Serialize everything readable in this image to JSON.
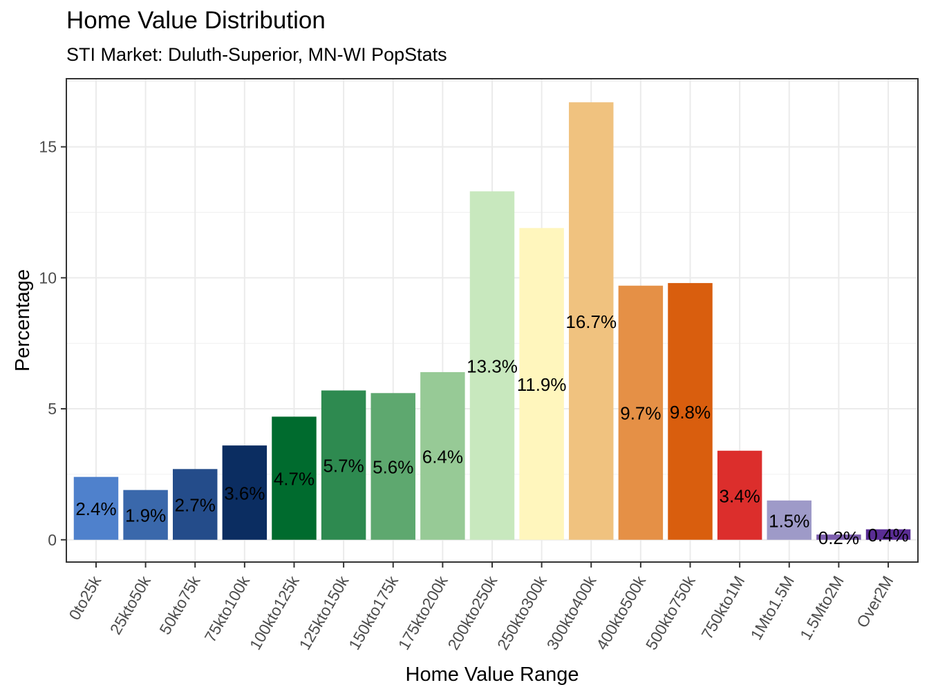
{
  "chart_data": {
    "type": "bar",
    "title": "Home Value Distribution",
    "subtitle": "STI Market: Duluth-Superior, MN-WI PopStats",
    "xlabel": "Home Value Range",
    "ylabel": "Percentage",
    "ylim": [
      -0.85,
      17.6
    ],
    "yticks": [
      0,
      5,
      10,
      15
    ],
    "grid": true,
    "categories": [
      "0to25k",
      "25kto50k",
      "50kto75k",
      "75kto100k",
      "100kto125k",
      "125kto150k",
      "150kto175k",
      "175kto200k",
      "200kto250k",
      "250kto300k",
      "300kto400k",
      "400kto500k",
      "500kto750k",
      "750kto1M",
      "1Mto1.5M",
      "1.5Mto2M",
      "Over2M"
    ],
    "values": [
      2.4,
      1.9,
      2.7,
      3.6,
      4.7,
      5.7,
      5.6,
      6.4,
      13.3,
      11.9,
      16.7,
      9.7,
      9.8,
      3.4,
      1.5,
      0.2,
      0.4
    ],
    "labels": [
      "2.4%",
      "1.9%",
      "2.7%",
      "3.6%",
      "4.7%",
      "5.7%",
      "5.6%",
      "6.4%",
      "13.3%",
      "11.9%",
      "16.7%",
      "9.7%",
      "9.8%",
      "3.4%",
      "1.5%",
      "0.2%",
      "0.4%"
    ],
    "colors": [
      "#4F81CC",
      "#3A68AB",
      "#244C8A",
      "#0B2D61",
      "#006B2E",
      "#2E8A50",
      "#5EA86F",
      "#97CA96",
      "#C8E8BE",
      "#FFF6BD",
      "#F0C27F",
      "#E59046",
      "#D95E0E",
      "#DC2E2C",
      "#9E9AC8",
      "#7D5EAE",
      "#5A2D95"
    ],
    "legend": "none"
  }
}
